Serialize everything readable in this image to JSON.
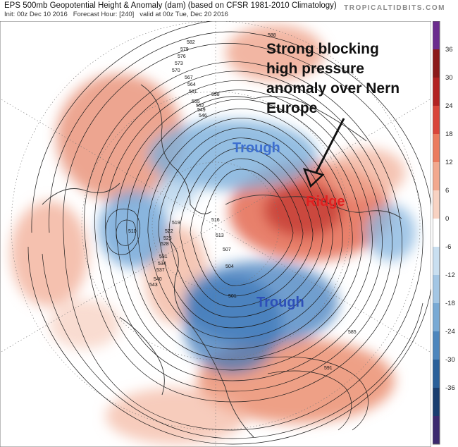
{
  "header": {
    "title": "EPS 500mb Geopotential Height & Anomaly (dam) (based on CFSR 1981-2010 Climatology)",
    "init": "Init: 00z Dec 10 2016",
    "forecast_hour": "Forecast Hour: [240]",
    "valid": "valid at 00z Tue, Dec 20 2016",
    "brand": "TROPICALTIDBITS.COM"
  },
  "annotations": {
    "callout_line1": "Strong blocking",
    "callout_line2": "high pressure",
    "callout_line3": "anomaly over Nern",
    "callout_line4": "Europe",
    "trough_top": "Trough",
    "trough_bottom": "Trough",
    "ridge": "Ridge"
  },
  "contour_labels": [
    "588",
    "582",
    "579",
    "576",
    "573",
    "570",
    "567",
    "564",
    "561",
    "558",
    "555",
    "552",
    "549",
    "546",
    "543",
    "540",
    "537",
    "534",
    "531",
    "528",
    "525",
    "522",
    "519",
    "516",
    "513",
    "510",
    "507",
    "504",
    "501",
    "591",
    "585"
  ],
  "colorbar": {
    "ticks": [
      "36",
      "30",
      "24",
      "18",
      "12",
      "6",
      "0",
      "-6",
      "-12",
      "-18",
      "-24",
      "-30",
      "-36"
    ],
    "colors": [
      "#6b2b8e",
      "#8b1a1a",
      "#b22222",
      "#d9453a",
      "#eb7b5e",
      "#f2a88e",
      "#f8d2c2",
      "#ffffff",
      "#c9dff0",
      "#a3c6e4",
      "#78a9d4",
      "#4d86bd",
      "#2a5f99",
      "#1a3d6e",
      "#3c2a6e"
    ]
  },
  "colors": {
    "positive_anomaly": "#ec9a80",
    "negative_anomaly": "#7fb1dd",
    "contour": "#222222",
    "land": "#ffffff"
  }
}
